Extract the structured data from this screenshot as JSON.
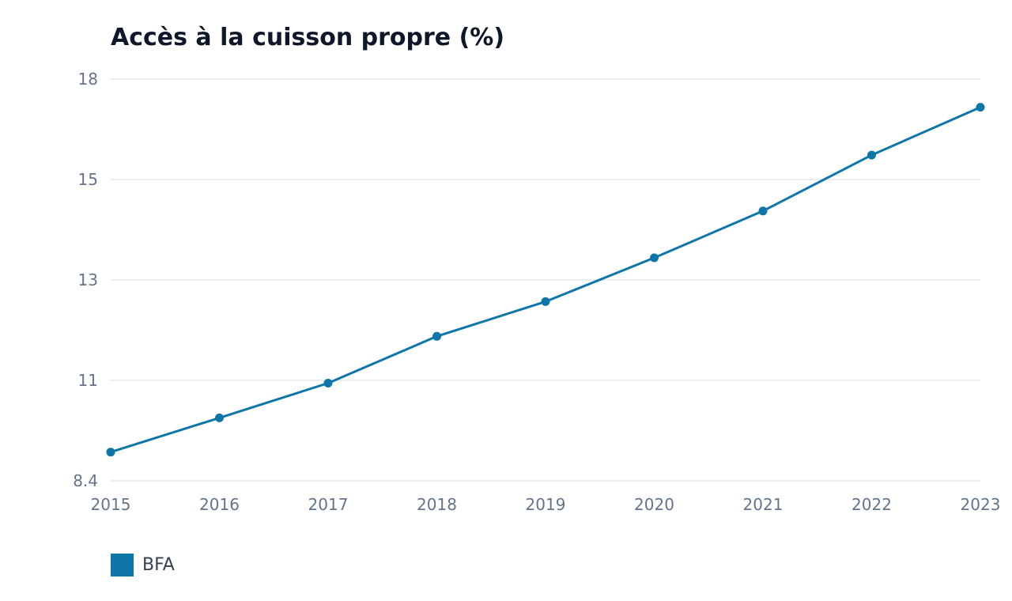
{
  "chart_data": {
    "type": "line",
    "title": "Accès à la cuisson propre (%)",
    "xlabel": "",
    "ylabel": "",
    "x": [
      "2015",
      "2016",
      "2017",
      "2018",
      "2019",
      "2020",
      "2021",
      "2022",
      "2023"
    ],
    "series": [
      {
        "name": "BFA",
        "color": "#0e76a8",
        "values": [
          8.97,
          9.65,
          10.34,
          11.27,
          11.96,
          12.83,
          13.76,
          14.87,
          15.82
        ]
      }
    ],
    "y_ticks": [
      "8.4",
      "11",
      "13",
      "15",
      "18"
    ],
    "ylim": [
      8.4,
      16.38
    ],
    "grid": true,
    "legend_position": "bottom-left",
    "colors": {
      "line": "#0e76a8",
      "grid": "#e5e7eb",
      "tick_text": "#64748b",
      "title_text": "#0f172a"
    }
  }
}
